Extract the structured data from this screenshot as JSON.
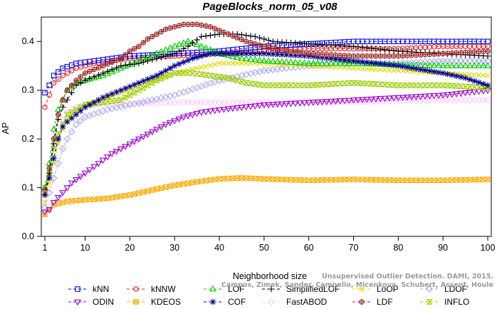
{
  "chart_data": {
    "type": "line",
    "title": "PageBlocks_norm_05_v08",
    "xlabel": "Neighborhood size",
    "ylabel": "AP",
    "xlim": [
      1,
      100
    ],
    "ylim": [
      0,
      0.45
    ],
    "xticks": [
      1,
      10,
      20,
      30,
      40,
      50,
      60,
      70,
      80,
      90,
      100
    ],
    "yticks": [
      0.0,
      0.1,
      0.2,
      0.3,
      0.4
    ],
    "ytick_labels": [
      "0.0",
      "0.1",
      "0.2",
      "0.3",
      "0.4"
    ],
    "grid": false,
    "legend_position": "bottom",
    "watermark": [
      "Unsupervised Outlier Detection. DAMI, 2015.",
      "Campos, Zimek, Sander, Campello, Micenkova, Schubert, Assent, Houle"
    ],
    "series": [
      {
        "name": "kNN",
        "color": "#0000ee",
        "marker": "square",
        "points": [
          [
            1,
            0.295
          ],
          [
            2,
            0.31
          ],
          [
            3,
            0.33
          ],
          [
            5,
            0.345
          ],
          [
            8,
            0.355
          ],
          [
            12,
            0.36
          ],
          [
            20,
            0.37
          ],
          [
            30,
            0.375
          ],
          [
            40,
            0.38
          ],
          [
            50,
            0.39
          ],
          [
            60,
            0.395
          ],
          [
            70,
            0.4
          ],
          [
            80,
            0.4
          ],
          [
            90,
            0.4
          ],
          [
            100,
            0.4
          ]
        ]
      },
      {
        "name": "kNNW",
        "color": "#dd2222",
        "marker": "circle",
        "points": [
          [
            1,
            0.265
          ],
          [
            2,
            0.29
          ],
          [
            3,
            0.315
          ],
          [
            5,
            0.33
          ],
          [
            8,
            0.345
          ],
          [
            12,
            0.355
          ],
          [
            20,
            0.365
          ],
          [
            30,
            0.37
          ],
          [
            40,
            0.375
          ],
          [
            50,
            0.38
          ],
          [
            60,
            0.385
          ],
          [
            70,
            0.385
          ],
          [
            80,
            0.385
          ],
          [
            90,
            0.39
          ],
          [
            100,
            0.39
          ]
        ]
      },
      {
        "name": "LOF",
        "color": "#00cc00",
        "marker": "triangle-up",
        "points": [
          [
            1,
            0.1
          ],
          [
            2,
            0.15
          ],
          [
            3,
            0.22
          ],
          [
            4,
            0.26
          ],
          [
            5,
            0.28
          ],
          [
            6,
            0.3
          ],
          [
            8,
            0.315
          ],
          [
            10,
            0.32
          ],
          [
            14,
            0.33
          ],
          [
            18,
            0.345
          ],
          [
            22,
            0.36
          ],
          [
            26,
            0.375
          ],
          [
            30,
            0.39
          ],
          [
            33,
            0.4
          ],
          [
            36,
            0.39
          ],
          [
            40,
            0.375
          ],
          [
            45,
            0.365
          ],
          [
            50,
            0.36
          ],
          [
            60,
            0.355
          ],
          [
            70,
            0.355
          ],
          [
            80,
            0.352
          ],
          [
            90,
            0.35
          ],
          [
            100,
            0.35
          ]
        ]
      },
      {
        "name": "SimplifiedLOF",
        "color": "#000000",
        "marker": "plus",
        "points": [
          [
            1,
            0.085
          ],
          [
            2,
            0.13
          ],
          [
            3,
            0.19
          ],
          [
            4,
            0.24
          ],
          [
            5,
            0.265
          ],
          [
            6,
            0.28
          ],
          [
            8,
            0.31
          ],
          [
            10,
            0.32
          ],
          [
            14,
            0.335
          ],
          [
            18,
            0.35
          ],
          [
            22,
            0.355
          ],
          [
            26,
            0.365
          ],
          [
            30,
            0.375
          ],
          [
            33,
            0.39
          ],
          [
            36,
            0.41
          ],
          [
            40,
            0.415
          ],
          [
            44,
            0.415
          ],
          [
            48,
            0.41
          ],
          [
            52,
            0.4
          ],
          [
            60,
            0.395
          ],
          [
            70,
            0.39
          ],
          [
            80,
            0.38
          ],
          [
            90,
            0.375
          ],
          [
            100,
            0.37
          ]
        ]
      },
      {
        "name": "LoOP",
        "color": "#dddd00",
        "marker": "x",
        "points": [
          [
            1,
            0.07
          ],
          [
            2,
            0.11
          ],
          [
            3,
            0.15
          ],
          [
            4,
            0.19
          ],
          [
            5,
            0.22
          ],
          [
            6,
            0.24
          ],
          [
            8,
            0.26
          ],
          [
            10,
            0.27
          ],
          [
            15,
            0.285
          ],
          [
            20,
            0.3
          ],
          [
            25,
            0.32
          ],
          [
            30,
            0.335
          ],
          [
            35,
            0.345
          ],
          [
            40,
            0.355
          ],
          [
            50,
            0.355
          ],
          [
            60,
            0.35
          ],
          [
            70,
            0.345
          ],
          [
            80,
            0.34
          ],
          [
            90,
            0.335
          ],
          [
            100,
            0.33
          ]
        ]
      },
      {
        "name": "LDOF",
        "color": "#aaaaee",
        "marker": "diamond",
        "points": [
          [
            1,
            0.06
          ],
          [
            2,
            0.09
          ],
          [
            3,
            0.12
          ],
          [
            4,
            0.15
          ],
          [
            5,
            0.18
          ],
          [
            6,
            0.2
          ],
          [
            8,
            0.23
          ],
          [
            10,
            0.245
          ],
          [
            15,
            0.26
          ],
          [
            20,
            0.27
          ],
          [
            30,
            0.29
          ],
          [
            40,
            0.32
          ],
          [
            50,
            0.34
          ],
          [
            60,
            0.35
          ],
          [
            70,
            0.355
          ],
          [
            80,
            0.355
          ],
          [
            90,
            0.36
          ],
          [
            100,
            0.36
          ]
        ]
      },
      {
        "name": "ODIN",
        "color": "#9900cc",
        "marker": "triangle-down",
        "points": [
          [
            1,
            0.05
          ],
          [
            2,
            0.055
          ],
          [
            3,
            0.07
          ],
          [
            5,
            0.09
          ],
          [
            7,
            0.11
          ],
          [
            10,
            0.13
          ],
          [
            13,
            0.15
          ],
          [
            16,
            0.17
          ],
          [
            19,
            0.185
          ],
          [
            22,
            0.2
          ],
          [
            25,
            0.215
          ],
          [
            28,
            0.23
          ],
          [
            32,
            0.245
          ],
          [
            36,
            0.255
          ],
          [
            40,
            0.26
          ],
          [
            50,
            0.27
          ],
          [
            60,
            0.275
          ],
          [
            70,
            0.28
          ],
          [
            80,
            0.285
          ],
          [
            90,
            0.29
          ],
          [
            100,
            0.3
          ]
        ]
      },
      {
        "name": "KDEOS",
        "color": "#ffaa00",
        "marker": "square-x",
        "points": [
          [
            1,
            0.045
          ],
          [
            3,
            0.065
          ],
          [
            6,
            0.072
          ],
          [
            10,
            0.075
          ],
          [
            15,
            0.078
          ],
          [
            20,
            0.085
          ],
          [
            25,
            0.095
          ],
          [
            30,
            0.105
          ],
          [
            35,
            0.112
          ],
          [
            40,
            0.118
          ],
          [
            45,
            0.12
          ],
          [
            50,
            0.118
          ],
          [
            60,
            0.115
          ],
          [
            70,
            0.117
          ],
          [
            80,
            0.115
          ],
          [
            90,
            0.115
          ],
          [
            100,
            0.117
          ]
        ]
      },
      {
        "name": "COF",
        "color": "#000088",
        "marker": "star",
        "points": [
          [
            1,
            0.085
          ],
          [
            2,
            0.12
          ],
          [
            3,
            0.16
          ],
          [
            4,
            0.2
          ],
          [
            5,
            0.225
          ],
          [
            6,
            0.235
          ],
          [
            8,
            0.25
          ],
          [
            10,
            0.265
          ],
          [
            14,
            0.285
          ],
          [
            18,
            0.3
          ],
          [
            22,
            0.315
          ],
          [
            26,
            0.33
          ],
          [
            30,
            0.35
          ],
          [
            34,
            0.365
          ],
          [
            38,
            0.375
          ],
          [
            42,
            0.375
          ],
          [
            50,
            0.375
          ],
          [
            60,
            0.37
          ],
          [
            70,
            0.36
          ],
          [
            80,
            0.35
          ],
          [
            90,
            0.335
          ],
          [
            95,
            0.325
          ],
          [
            100,
            0.31
          ]
        ]
      },
      {
        "name": "FastABOD",
        "color": "#ffccff",
        "marker": "diamond",
        "points": [
          [
            1,
            0.09
          ],
          [
            2,
            0.13
          ],
          [
            3,
            0.18
          ],
          [
            4,
            0.21
          ],
          [
            5,
            0.24
          ],
          [
            6,
            0.255
          ],
          [
            8,
            0.265
          ],
          [
            10,
            0.27
          ],
          [
            20,
            0.272
          ],
          [
            30,
            0.275
          ],
          [
            40,
            0.275
          ],
          [
            50,
            0.275
          ],
          [
            60,
            0.275
          ],
          [
            70,
            0.275
          ],
          [
            80,
            0.278
          ],
          [
            90,
            0.28
          ],
          [
            100,
            0.28
          ]
        ]
      },
      {
        "name": "LDF",
        "color": "#992222",
        "marker": "circle-plus",
        "points": [
          [
            1,
            0.095
          ],
          [
            2,
            0.14
          ],
          [
            3,
            0.2
          ],
          [
            4,
            0.25
          ],
          [
            5,
            0.28
          ],
          [
            6,
            0.3
          ],
          [
            8,
            0.32
          ],
          [
            10,
            0.335
          ],
          [
            14,
            0.35
          ],
          [
            18,
            0.365
          ],
          [
            20,
            0.38
          ],
          [
            22,
            0.39
          ],
          [
            24,
            0.405
          ],
          [
            26,
            0.415
          ],
          [
            28,
            0.425
          ],
          [
            30,
            0.43
          ],
          [
            32,
            0.435
          ],
          [
            35,
            0.435
          ],
          [
            38,
            0.43
          ],
          [
            42,
            0.415
          ],
          [
            46,
            0.4
          ],
          [
            50,
            0.39
          ],
          [
            55,
            0.38
          ],
          [
            60,
            0.375
          ],
          [
            70,
            0.37
          ],
          [
            80,
            0.37
          ],
          [
            90,
            0.375
          ],
          [
            100,
            0.38
          ]
        ]
      },
      {
        "name": "INFLO",
        "color": "#99cc00",
        "marker": "hourglass",
        "points": [
          [
            1,
            0.1
          ],
          [
            2,
            0.13
          ],
          [
            3,
            0.18
          ],
          [
            4,
            0.21
          ],
          [
            5,
            0.23
          ],
          [
            6,
            0.25
          ],
          [
            8,
            0.26
          ],
          [
            10,
            0.27
          ],
          [
            14,
            0.275
          ],
          [
            18,
            0.28
          ],
          [
            22,
            0.3
          ],
          [
            26,
            0.32
          ],
          [
            30,
            0.335
          ],
          [
            34,
            0.335
          ],
          [
            38,
            0.33
          ],
          [
            42,
            0.325
          ],
          [
            46,
            0.315
          ],
          [
            50,
            0.31
          ],
          [
            60,
            0.31
          ],
          [
            70,
            0.315
          ],
          [
            80,
            0.31
          ],
          [
            90,
            0.31
          ],
          [
            100,
            0.305
          ]
        ]
      }
    ]
  }
}
